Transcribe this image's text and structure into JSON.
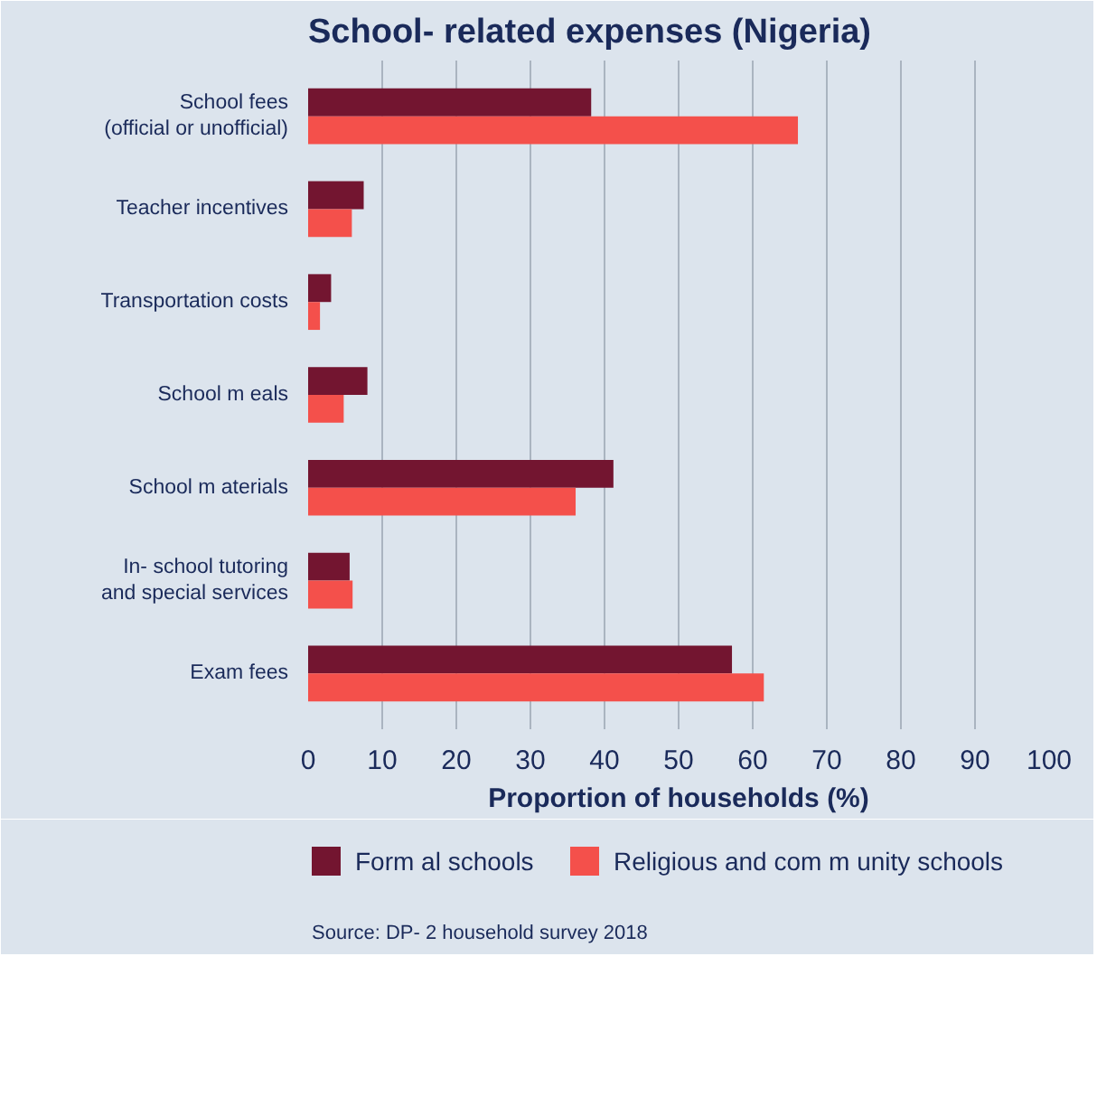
{
  "chart_data": {
    "type": "bar",
    "orientation": "horizontal",
    "title": "School- related expenses (Nigeria)",
    "xlabel": "Proportion of households (%)",
    "categories": [
      "School fees\n(official or unofficial)",
      "Teacher incentives",
      "Transportation costs",
      "School m eals",
      "School m aterials",
      "In- school tutoring\nand special services",
      "Exam fees"
    ],
    "series": [
      {
        "name": "Form al schools",
        "color": "#731530",
        "values": [
          38.2,
          7.5,
          3.1,
          8.0,
          41.2,
          5.6,
          57.2
        ]
      },
      {
        "name": "Religious and com m unity schools",
        "color": "#f4504b",
        "values": [
          66.1,
          5.9,
          1.6,
          4.8,
          36.1,
          6.0,
          61.5
        ]
      }
    ],
    "xlim": [
      0,
      100
    ],
    "xticks": [
      0,
      {
        "value": 10,
        "label": "10"
      },
      20,
      30,
      40,
      50,
      60,
      70,
      80,
      90,
      100
    ],
    "grid": "x",
    "legend": "bottom",
    "annotations": [
      "Source: DP- 2 household survey 2018"
    ]
  }
}
